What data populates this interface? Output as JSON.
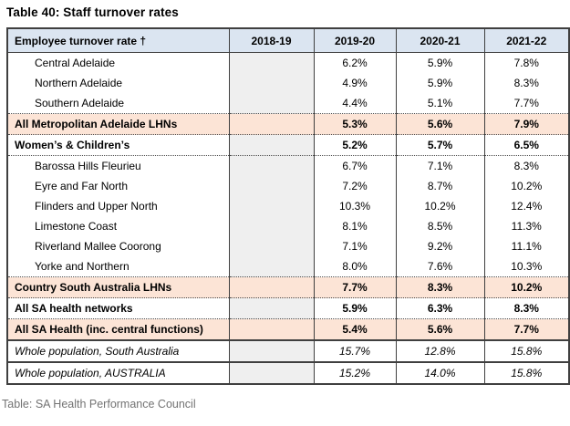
{
  "title": "Table 40: Staff turnover rates",
  "caption": "Table: SA Health Performance Council",
  "colors": {
    "header_bg": "#dbe5f1",
    "highlight_bg": "#fce4d6",
    "empty_column_bg": "#efefef",
    "border": "#3f3f3f",
    "caption_text": "#737373"
  },
  "table": {
    "columns": [
      "Employee turnover rate †",
      "2018-19",
      "2019-20",
      "2020-21",
      "2021-22"
    ],
    "rows": [
      {
        "label": "Central Adelaide",
        "style": "sub",
        "values": [
          "",
          "6.2%",
          "5.9%",
          "7.8%"
        ]
      },
      {
        "label": "Northern Adelaide",
        "style": "sub",
        "values": [
          "",
          "4.9%",
          "5.9%",
          "8.3%"
        ]
      },
      {
        "label": "Southern Adelaide",
        "style": "sub",
        "values": [
          "",
          "4.4%",
          "5.1%",
          "7.7%"
        ]
      },
      {
        "label": "All Metropolitan Adelaide LHNs",
        "style": "total-peach",
        "values": [
          "",
          "5.3%",
          "5.6%",
          "7.9%"
        ]
      },
      {
        "label": "Women’s & Children’s",
        "style": "total",
        "values": [
          "",
          "5.2%",
          "5.7%",
          "6.5%"
        ]
      },
      {
        "label": "Barossa Hills Fleurieu",
        "style": "sub",
        "values": [
          "",
          "6.7%",
          "7.1%",
          "8.3%"
        ]
      },
      {
        "label": "Eyre and Far North",
        "style": "sub",
        "values": [
          "",
          "7.2%",
          "8.7%",
          "10.2%"
        ]
      },
      {
        "label": "Flinders and Upper North",
        "style": "sub",
        "values": [
          "",
          "10.3%",
          "10.2%",
          "12.4%"
        ]
      },
      {
        "label": "Limestone Coast",
        "style": "sub",
        "values": [
          "",
          "8.1%",
          "8.5%",
          "11.3%"
        ]
      },
      {
        "label": "Riverland Mallee Coorong",
        "style": "sub",
        "values": [
          "",
          "7.1%",
          "9.2%",
          "11.1%"
        ]
      },
      {
        "label": "Yorke and Northern",
        "style": "sub",
        "values": [
          "",
          "8.0%",
          "7.6%",
          "10.3%"
        ]
      },
      {
        "label": "Country South Australia LHNs",
        "style": "total-peach",
        "values": [
          "",
          "7.7%",
          "8.3%",
          "10.2%"
        ]
      },
      {
        "label": "All SA health networks",
        "style": "total",
        "values": [
          "",
          "5.9%",
          "6.3%",
          "8.3%"
        ]
      },
      {
        "label": "All SA Health (inc. central functions)",
        "style": "total-peach",
        "values": [
          "",
          "5.4%",
          "5.6%",
          "7.7%"
        ]
      },
      {
        "label": "Whole population, South Australia",
        "style": "pop",
        "values": [
          "",
          "15.7%",
          "12.8%",
          "15.8%"
        ]
      },
      {
        "label": "Whole population, AUSTRALIA",
        "style": "pop",
        "values": [
          "",
          "15.2%",
          "14.0%",
          "15.8%"
        ]
      }
    ]
  }
}
